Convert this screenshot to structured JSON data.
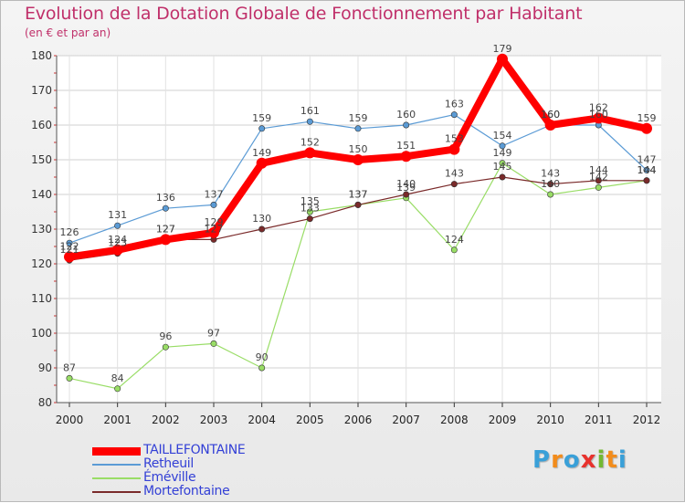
{
  "title": "Evolution de la Dotation Globale de Fonctionnement par Habitant",
  "subtitle": "(en € et par an)",
  "logo_letters": [
    "P",
    "r",
    "o",
    "x",
    "i",
    "t",
    "i"
  ],
  "logo_colors": [
    "#3aa0d8",
    "#f28c1c",
    "#3aa0d8",
    "#e8322d",
    "#72b833",
    "#f28c1c",
    "#3aa0d8"
  ],
  "chart_data": {
    "type": "line",
    "title": "Evolution de la Dotation Globale de Fonctionnement par Habitant",
    "ylabel": "(en € et par an)",
    "xlabel": "",
    "categories": [
      "2000",
      "2001",
      "2002",
      "2003",
      "2004",
      "2005",
      "2006",
      "2007",
      "2008",
      "2009",
      "2010",
      "2011",
      "2012"
    ],
    "ylim": [
      80,
      180
    ],
    "yticks": [
      80,
      90,
      100,
      110,
      120,
      130,
      140,
      150,
      160,
      170,
      180
    ],
    "grid": true,
    "legend_position": "bottom-left",
    "series": [
      {
        "name": "TAILLEFONTAINE",
        "color": "#ff0000",
        "values": [
          122,
          124,
          127,
          129,
          149,
          152,
          150,
          151,
          153,
          179,
          160,
          162,
          159
        ]
      },
      {
        "name": "Retheuil",
        "color": "#5b9bd5",
        "values": [
          126,
          131,
          136,
          137,
          159,
          161,
          159,
          160,
          163,
          154,
          160,
          160,
          147
        ]
      },
      {
        "name": "Éméville",
        "color": "#99dd66",
        "values": [
          87,
          84,
          96,
          97,
          90,
          135,
          137,
          139,
          124,
          149,
          140,
          142,
          144
        ]
      },
      {
        "name": "Mortefontaine",
        "color": "#7a2a2a",
        "values": [
          121,
          123,
          127,
          127,
          130,
          133,
          137,
          140,
          143,
          145,
          143,
          144,
          144
        ]
      }
    ]
  }
}
